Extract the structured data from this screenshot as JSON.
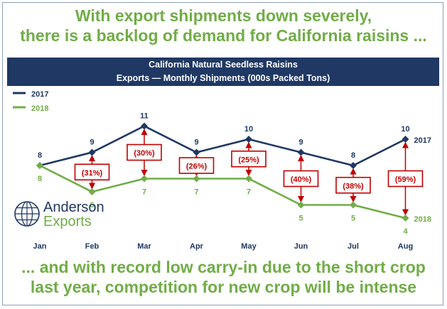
{
  "headline_top": [
    "With export shipments down severely,",
    "there is a backlog of demand for California raisins ..."
  ],
  "headline_bottom": [
    "... and with record low carry-in due to the short crop",
    "last year, competition for new crop will be intense"
  ],
  "logo": {
    "line1": "Anderson",
    "line2": "Exports",
    "icon": "globe-icon"
  },
  "colors": {
    "series2017": "#1f3864",
    "series2018": "#71ad47",
    "change": "#c00000",
    "banner": "#1f3864"
  },
  "chart_data": {
    "type": "line",
    "title": "California Natural Seedless Raisins",
    "subtitle": "Exports — Monthly Shipments (000s Packed Tons)",
    "categories": [
      "Jan",
      "Feb",
      "Mar",
      "Apr",
      "May",
      "Jun",
      "Jul",
      "Aug"
    ],
    "series": [
      {
        "name": "2017",
        "values": [
          8,
          9,
          11,
          9,
          10,
          9,
          8,
          10
        ],
        "end_label": "2017"
      },
      {
        "name": "2018",
        "values": [
          8,
          6,
          7,
          7,
          7,
          5,
          5,
          4
        ],
        "end_label": "2018"
      }
    ],
    "changes": [
      {
        "category": "Feb",
        "label": "(31%)"
      },
      {
        "category": "Mar",
        "label": "(30%)"
      },
      {
        "category": "Apr",
        "label": "(26%)"
      },
      {
        "category": "May",
        "label": "(25%)"
      },
      {
        "category": "Jun",
        "label": "(40%)"
      },
      {
        "category": "Jul",
        "label": "(38%)"
      },
      {
        "category": "Aug",
        "label": "(59%)"
      }
    ],
    "legend": "top-left",
    "grid": false
  }
}
